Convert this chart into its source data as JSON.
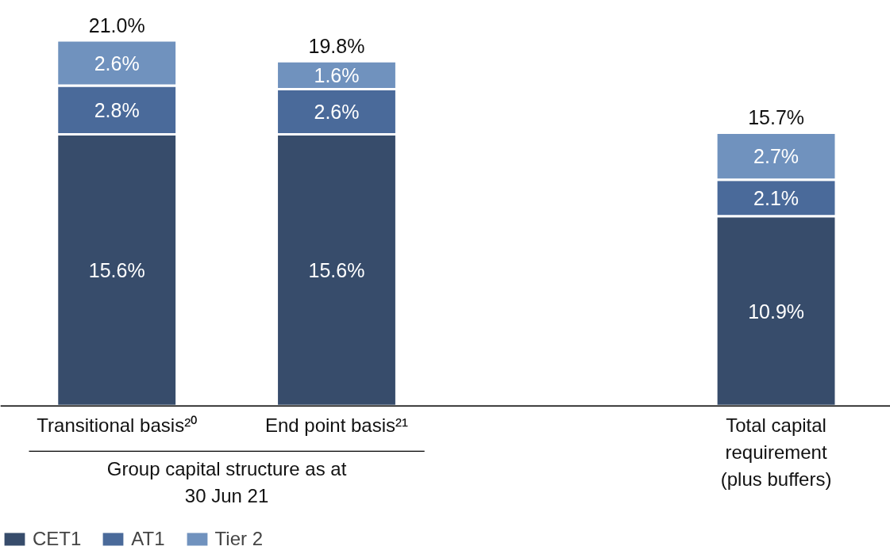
{
  "chart_data": {
    "type": "bar",
    "stacked": true,
    "categories": [
      "Transitional basis²⁰",
      "End point basis²¹",
      null,
      "Total capital requirement (plus buffers)"
    ],
    "series": [
      {
        "name": "CET1",
        "color": "#374c6b",
        "values": [
          15.6,
          15.6,
          null,
          10.9
        ],
        "value_labels": [
          "15.6%",
          "15.6%",
          null,
          "10.9%"
        ]
      },
      {
        "name": "AT1",
        "color": "#4a6a9a",
        "values": [
          2.8,
          2.6,
          null,
          2.1
        ],
        "value_labels": [
          "2.8%",
          "2.6%",
          null,
          "2.1%"
        ]
      },
      {
        "name": "Tier 2",
        "color": "#7092be",
        "values": [
          2.6,
          1.6,
          null,
          2.7
        ],
        "value_labels": [
          "2.6%",
          "1.6%",
          null,
          "2.7%"
        ]
      }
    ],
    "totals": [
      "21.0%",
      "19.8%",
      null,
      "15.7%"
    ],
    "annotations": [
      "Group capital structure as at 30 Jun 21"
    ],
    "legend": "bottom left",
    "grid": false
  }
}
